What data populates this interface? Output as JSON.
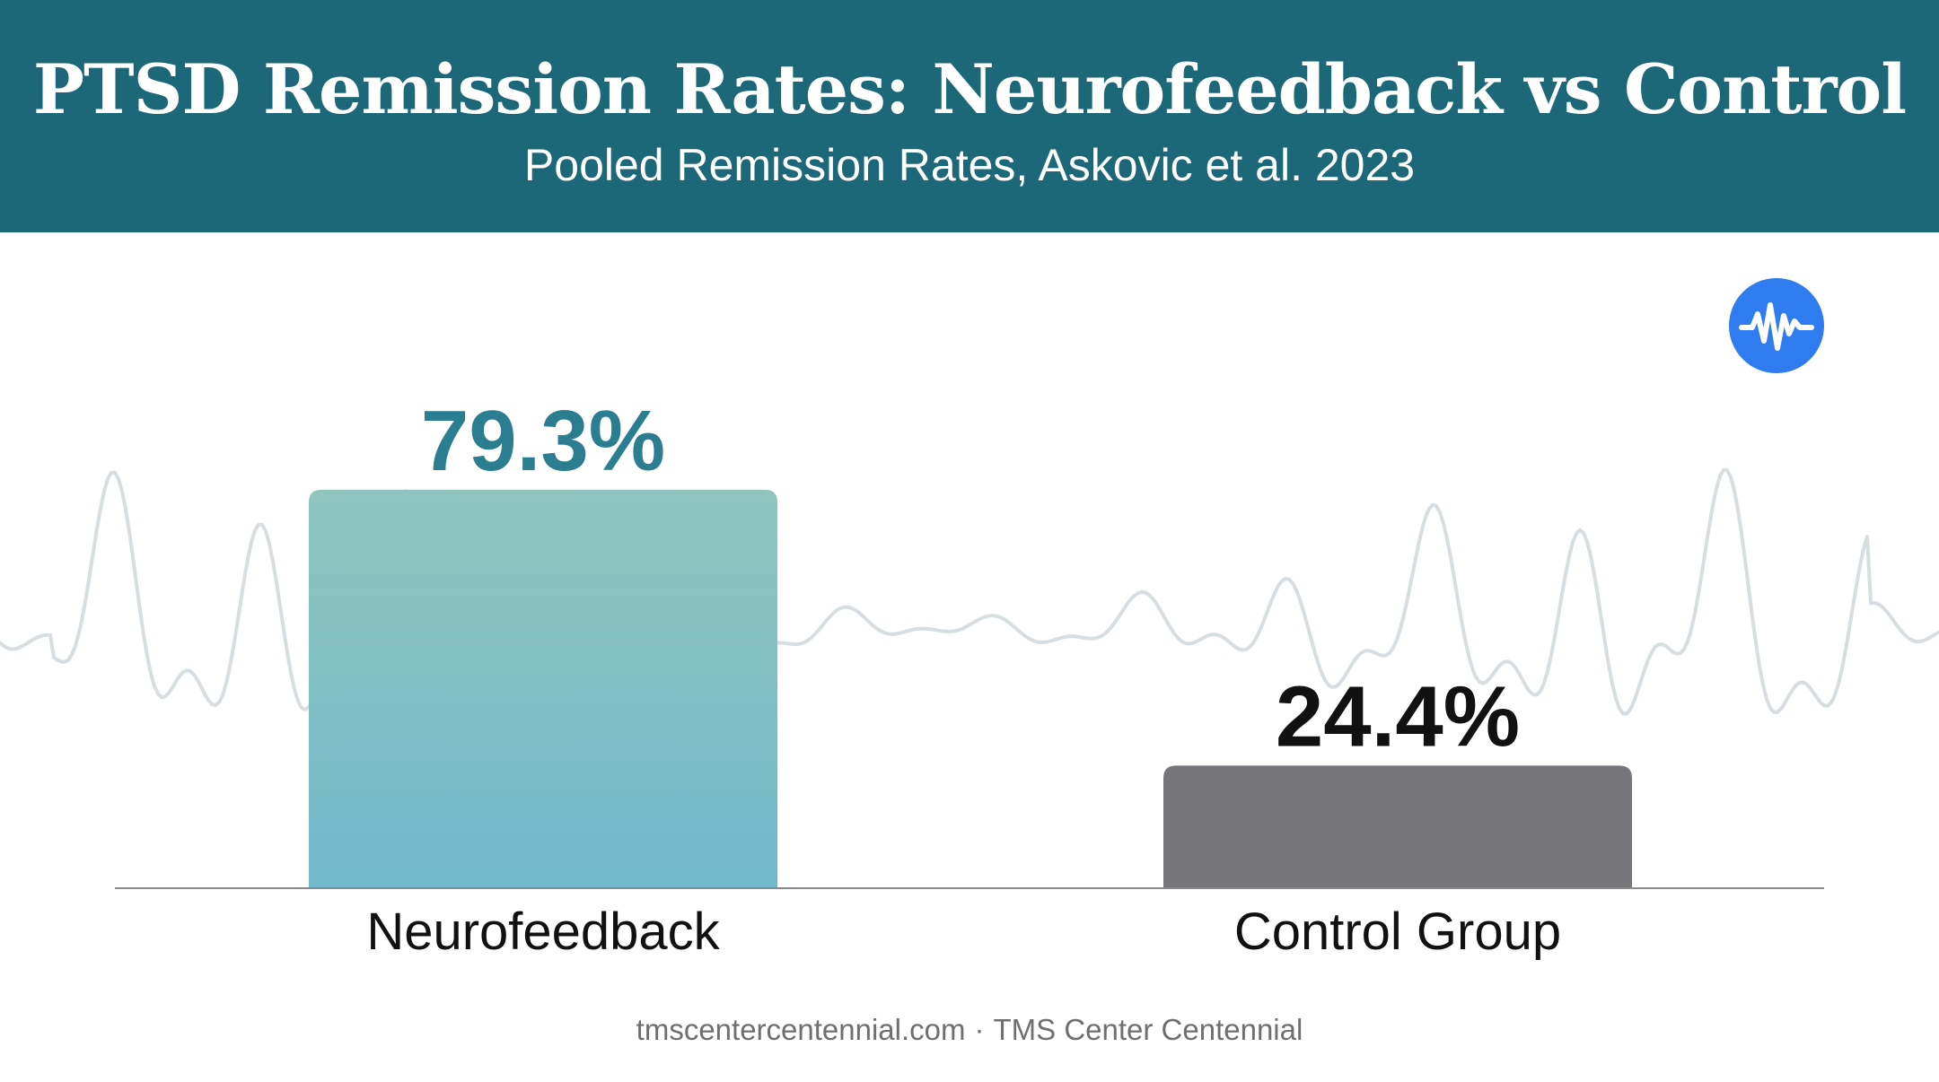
{
  "header": {
    "title": "PTSD Remission Rates: Neurofeedback vs Control",
    "subtitle": "Pooled Remission Rates, Askovic et al. 2023"
  },
  "colors": {
    "header_bg": "#1d6878",
    "bar_neurofeedback_top": "#8fc5bd",
    "bar_neurofeedback_bottom": "#72b9cc",
    "bar_control": "#767579",
    "label_neurofeedback": "#2b7d90",
    "label_control": "#111111",
    "wave": "#d7dee2",
    "logo_bg": "#2f7bf0"
  },
  "icons": {
    "logo": "brainwave-icon"
  },
  "chart_data": {
    "type": "bar",
    "categories": [
      "Neurofeedback",
      "Control Group"
    ],
    "values": [
      79.3,
      24.4
    ],
    "value_labels": [
      "79.3%",
      "24.4%"
    ],
    "title": "PTSD Remission Rates: Neurofeedback vs Control",
    "subtitle": "Pooled Remission Rates, Askovic et al. 2023",
    "xlabel": "",
    "ylabel": "",
    "ylim": [
      0,
      100
    ],
    "grid": false,
    "legend": "none"
  },
  "footer": {
    "site": "tmscentercentennial.com",
    "separator": "·",
    "org": "TMS Center Centennial"
  }
}
